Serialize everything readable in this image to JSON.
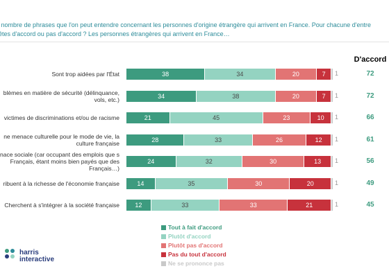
{
  "chart_data": {
    "type": "stacked_bar_horizontal",
    "title": [
      "e nombre de phrases que l'on peut entendre concernant les personnes d'origine étrangère qui arrivent en France. Pour chacune d'entre",
      "êtes d'accord ou pas d'accord ? Les personnes étrangères qui arrivent en France…"
    ],
    "categories": [
      "Sont trop aidées par l'État",
      "blèmes en matière de sécurité (délinquance, vols, etc.)",
      "victimes de discriminations et/ou de racisme",
      "ne menace culturelle pour le mode de vie, la culture française",
      "nace sociale (car occupant des emplois que s Français, étant moins bien payés que des Français…)",
      "ribuent à la richesse de l'économie française",
      "Cherchent à s'intégrer à la société française"
    ],
    "xlim": [
      0,
      100
    ],
    "series": [
      {
        "name": "Tout à fait d'accord",
        "color": "#3d9b7f",
        "values": [
          38,
          34,
          21,
          28,
          24,
          14,
          12
        ]
      },
      {
        "name": "Plutôt d'accord",
        "color": "#94d3c1",
        "values": [
          34,
          38,
          45,
          33,
          32,
          35,
          33
        ]
      },
      {
        "name": "Plutôt pas d'accord",
        "color": "#e27474",
        "values": [
          20,
          20,
          23,
          26,
          30,
          30,
          33
        ]
      },
      {
        "name": "Pas du tout d'accord",
        "color": "#c7323c",
        "values": [
          7,
          7,
          10,
          12,
          13,
          20,
          21
        ]
      },
      {
        "name": "Ne se prononce pas",
        "color": "#c9c9c9",
        "values": [
          1,
          1,
          1,
          1,
          1,
          1,
          1
        ]
      }
    ],
    "totals": {
      "name": "D'accord",
      "color": "#3d9b7f",
      "values": [
        72,
        72,
        66,
        61,
        56,
        49,
        45
      ]
    },
    "logo": [
      "harris",
      "interactive"
    ]
  }
}
